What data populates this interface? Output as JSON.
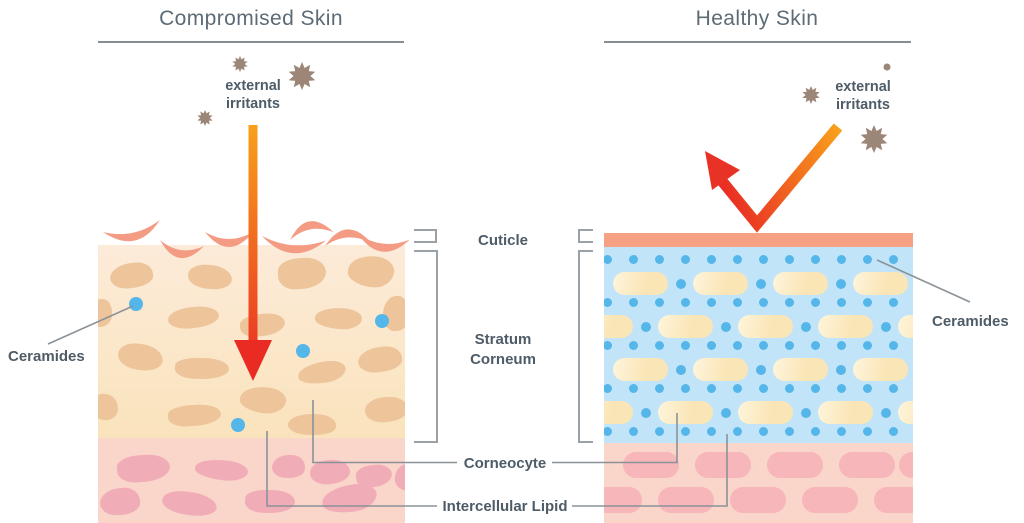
{
  "diagram": {
    "left": {
      "title": "Compromised Skin",
      "irritants": "external\nirritants",
      "ceramides": "Ceramides"
    },
    "right": {
      "title": "Healthy Skin",
      "irritants": "external\nirritants",
      "ceramides": "Ceramides"
    },
    "labels": {
      "cuticle": "Cuticle",
      "stratum_corneum": "Stratum\nCorneum",
      "corneocyte": "Corneocyte",
      "intercellular_lipid": "Intercellular Lipid"
    }
  },
  "colors": {
    "title_text": "#5C6B76",
    "label_text": "#4E5C68",
    "line_gray": "#858E95",
    "leader_gray": "#8A9299",
    "bracket_gray": "#9AA2A8",
    "arrow_orange": "#F8A01B",
    "arrow_red": "#E92B24",
    "irritant_brown": "#9C8677",
    "ceramide_blue": "#55B6E9",
    "corneocyte_tan": "#EEC49B",
    "corneocyte_cream": "#FBE9C2",
    "stratum_blue_bg": "#C2E4F8",
    "cuticle_salmon": "#F7A184",
    "flake_salmon": "#F49B84",
    "dermis_pink_bg": "#FAD5C9",
    "dermis_blob_left": "#F1ADB7",
    "dermis_blob_right": "#F6B6BA"
  }
}
